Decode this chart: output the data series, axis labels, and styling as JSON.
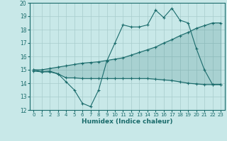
{
  "xlabel": "Humidex (Indice chaleur)",
  "xlim": [
    -0.5,
    23.5
  ],
  "ylim": [
    12,
    20
  ],
  "yticks": [
    12,
    13,
    14,
    15,
    16,
    17,
    18,
    19,
    20
  ],
  "xticks": [
    0,
    1,
    2,
    3,
    4,
    5,
    6,
    7,
    8,
    9,
    10,
    11,
    12,
    13,
    14,
    15,
    16,
    17,
    18,
    19,
    20,
    21,
    22,
    23
  ],
  "bg_color": "#c8e8e8",
  "line_color": "#1a6b6b",
  "grid_color": "#a8cccc",
  "line1_x": [
    0,
    1,
    2,
    3,
    4,
    5,
    6,
    7,
    8,
    9,
    10,
    11,
    12,
    13,
    14,
    15,
    16,
    17,
    18,
    19,
    20,
    21,
    22,
    23
  ],
  "line1_y": [
    14.9,
    14.85,
    14.9,
    14.7,
    14.1,
    13.5,
    12.5,
    12.25,
    13.5,
    15.65,
    17.0,
    18.35,
    18.2,
    18.2,
    18.35,
    19.45,
    18.9,
    19.6,
    18.7,
    18.5,
    16.6,
    15.0,
    13.9,
    13.9
  ],
  "line2_x": [
    0,
    1,
    2,
    3,
    4,
    5,
    6,
    7,
    8,
    9,
    10,
    11,
    12,
    13,
    14,
    15,
    16,
    17,
    18,
    19,
    20,
    21,
    22,
    23
  ],
  "line2_y": [
    15.0,
    15.0,
    15.1,
    15.2,
    15.3,
    15.4,
    15.5,
    15.55,
    15.6,
    15.7,
    15.8,
    15.9,
    16.1,
    16.3,
    16.5,
    16.7,
    17.0,
    17.25,
    17.55,
    17.8,
    18.1,
    18.3,
    18.5,
    18.5
  ],
  "line3_x": [
    0,
    1,
    2,
    3,
    4,
    5,
    6,
    7,
    8,
    9,
    10,
    11,
    12,
    13,
    14,
    15,
    16,
    17,
    18,
    19,
    20,
    21,
    22,
    23
  ],
  "line3_y": [
    15.0,
    14.85,
    14.85,
    14.7,
    14.4,
    14.4,
    14.35,
    14.35,
    14.35,
    14.35,
    14.35,
    14.35,
    14.35,
    14.35,
    14.35,
    14.3,
    14.25,
    14.2,
    14.1,
    14.0,
    13.95,
    13.9,
    13.9,
    13.9
  ]
}
